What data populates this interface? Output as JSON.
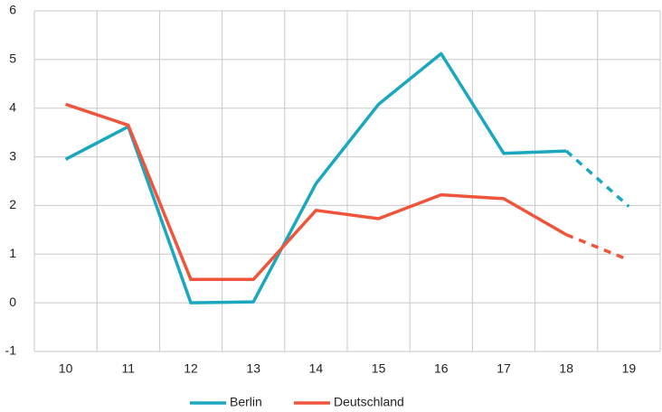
{
  "chart_data": {
    "type": "line",
    "categories": [
      "10",
      "11",
      "12",
      "13",
      "14",
      "15",
      "16",
      "17",
      "18",
      "19"
    ],
    "series": [
      {
        "name": "Berlin",
        "color": "#1ba7c0",
        "values": [
          2.95,
          3.62,
          0,
          0.02,
          2.45,
          4.08,
          5.12,
          3.07,
          3.12,
          1.98
        ]
      },
      {
        "name": "Deutschland",
        "color": "#f0553c",
        "values": [
          4.08,
          3.65,
          0.48,
          0.48,
          1.9,
          1.73,
          2.22,
          2.14,
          1.4,
          0.88
        ]
      }
    ],
    "dashed_from_category": "18",
    "ylim": [
      -1,
      6
    ],
    "yticks": [
      -1,
      0,
      1,
      2,
      3,
      4,
      5,
      6
    ],
    "grid": true,
    "legend": "bottom"
  }
}
